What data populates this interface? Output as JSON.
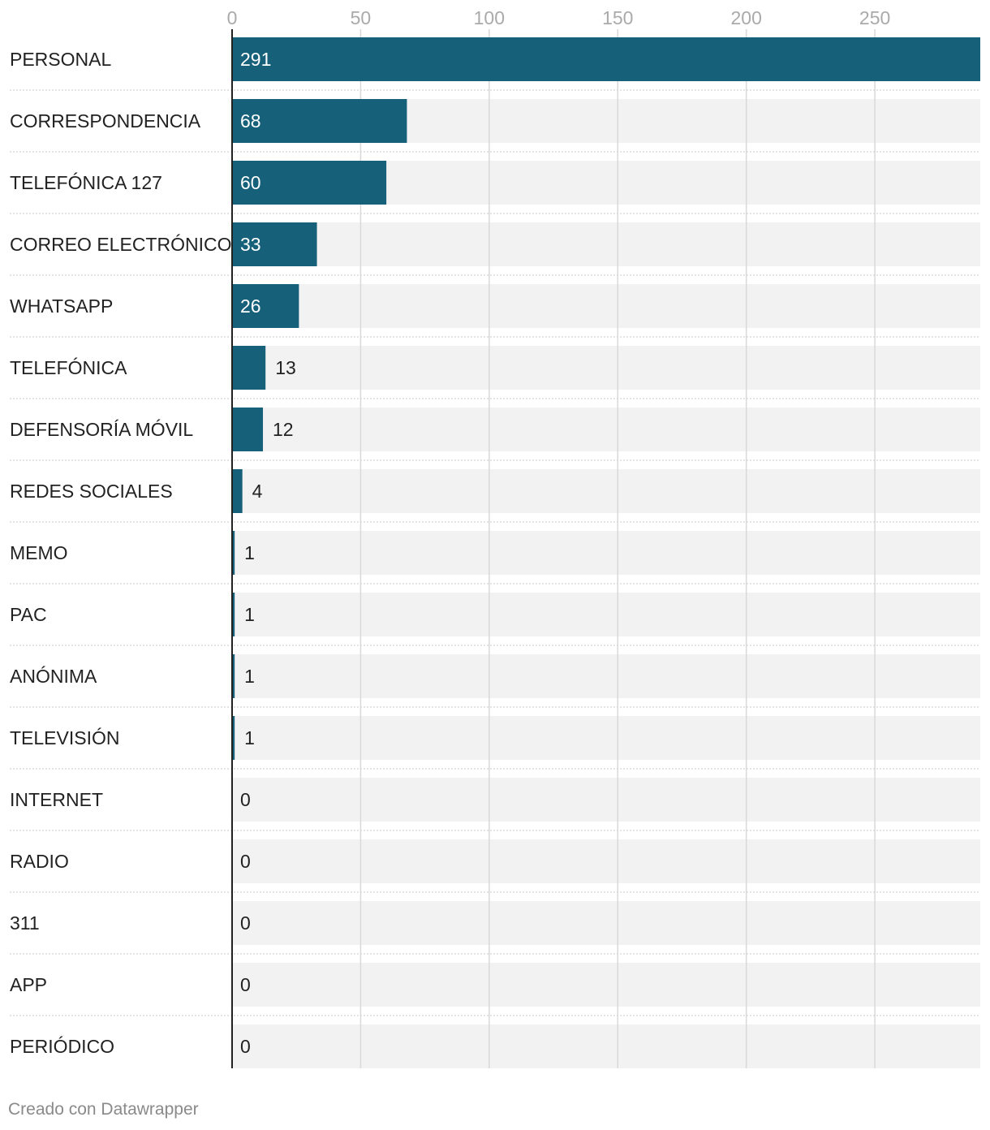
{
  "chart_data": {
    "type": "bar",
    "orientation": "horizontal",
    "categories": [
      "PERSONAL",
      "CORRESPONDENCIA",
      "TELEFÓNICA 127",
      "CORREO ELECTRÓNICO",
      "WHATSAPP",
      "TELEFÓNICA",
      "DEFENSORÍA MÓVIL",
      "REDES SOCIALES",
      "MEMO",
      "PAC",
      "ANÓNIMA",
      "TELEVISIÓN",
      "INTERNET",
      "RADIO",
      "311",
      "APP",
      "PERIÓDICO"
    ],
    "values": [
      291,
      68,
      60,
      33,
      26,
      13,
      12,
      4,
      1,
      1,
      1,
      1,
      0,
      0,
      0,
      0,
      0
    ],
    "ticks": [
      "0",
      "50",
      "100",
      "150",
      "200",
      "250"
    ],
    "tick_values": [
      0,
      50,
      100,
      150,
      200,
      250
    ],
    "xlim": [
      0,
      291
    ],
    "grid": true,
    "axis_position": "top",
    "bar_color": "#17607a",
    "track_color": "#f2f2f2"
  },
  "footer": {
    "credit": "Creado con Datawrapper"
  }
}
